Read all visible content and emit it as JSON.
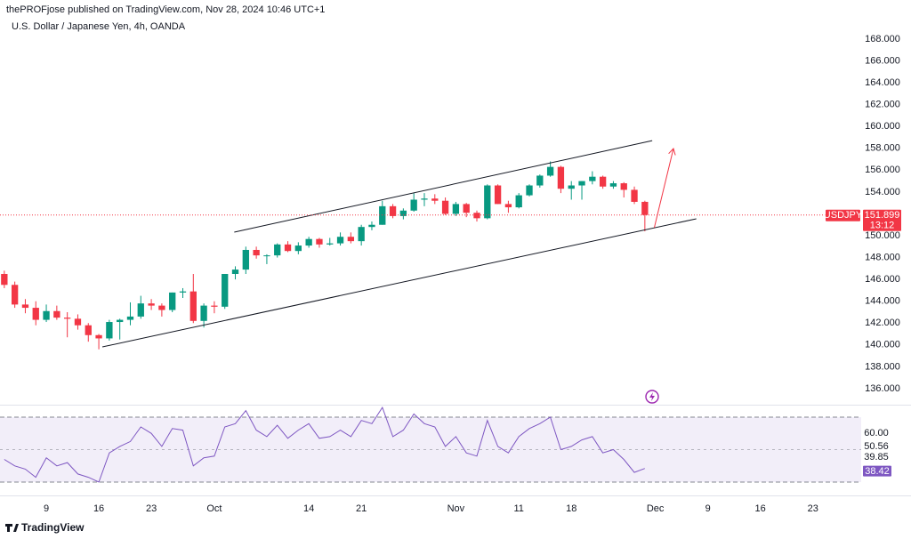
{
  "header": "thePROFjose published on TradingView.com, Nov 28, 2024 10:46 UTC+1",
  "footer": "TradingView",
  "chart_data": [
    {
      "type": "candlestick",
      "title": "U.S. Dollar / Japanese Yen, 4h, OANDA",
      "symbol": "USDJPY",
      "countdown": "13:12",
      "up_color": "#089981",
      "down_color": "#f23645",
      "open": [
        146.5,
        145.5,
        143.7,
        143.4,
        142.3,
        143.1,
        142.5,
        142.4,
        141.8,
        140.9,
        140.6,
        142.1,
        142.3,
        142.6,
        143.8,
        143.6,
        143.2,
        144.8,
        144.9,
        142.2,
        143.6,
        143.5,
        146.5,
        146.9,
        148.7,
        148.2,
        148.2,
        149.2,
        148.6,
        149.1,
        149.7,
        149.2,
        149.3,
        149.9,
        149.5,
        150.8,
        151.0,
        152.7,
        151.8,
        152.3,
        153.3,
        153.4,
        153.2,
        152.0,
        152.9,
        152.1,
        151.6,
        154.6,
        152.9,
        152.6,
        153.7,
        154.6,
        155.5,
        156.3,
        154.3,
        154.6,
        155.0,
        155.4,
        154.5,
        154.8,
        154.2,
        153.1
      ],
      "high": [
        146.8,
        145.8,
        144.2,
        144.0,
        143.7,
        143.6,
        143.0,
        142.8,
        142.0,
        141.0,
        142.3,
        142.4,
        143.9,
        144.5,
        144.2,
        143.8,
        144.8,
        145.2,
        146.5,
        143.8,
        144.0,
        146.5,
        147.2,
        149.0,
        149.0,
        148.3,
        149.3,
        149.5,
        149.4,
        149.9,
        149.8,
        149.8,
        150.3,
        150.3,
        151.0,
        151.3,
        153.2,
        152.9,
        152.5,
        153.9,
        153.9,
        153.8,
        153.5,
        153.1,
        153.0,
        152.3,
        154.7,
        154.7,
        153.2,
        153.9,
        154.7,
        155.6,
        156.8,
        156.4,
        155.0,
        155.0,
        155.9,
        155.5,
        155.0,
        154.9,
        154.5,
        153.2
      ],
      "low": [
        145.2,
        143.4,
        142.9,
        141.8,
        142.1,
        142.3,
        140.7,
        141.4,
        140.3,
        139.6,
        140.4,
        140.5,
        141.8,
        142.4,
        143.2,
        142.6,
        143.0,
        144.3,
        142.0,
        141.6,
        142.9,
        143.3,
        146.0,
        146.5,
        147.9,
        147.4,
        148.0,
        148.5,
        148.3,
        148.9,
        148.9,
        149.1,
        149.1,
        149.3,
        149.1,
        150.5,
        151.0,
        151.6,
        151.5,
        152.2,
        152.7,
        152.9,
        151.9,
        151.8,
        151.7,
        151.3,
        151.5,
        152.9,
        152.1,
        152.5,
        153.6,
        154.4,
        155.4,
        153.9,
        153.3,
        153.3,
        154.7,
        154.3,
        154.3,
        153.5,
        152.9,
        150.4
      ],
      "close": [
        145.5,
        143.7,
        143.4,
        142.3,
        143.1,
        142.5,
        142.4,
        141.8,
        140.9,
        140.6,
        142.1,
        142.3,
        142.6,
        143.8,
        143.6,
        143.2,
        144.8,
        144.9,
        142.2,
        143.6,
        143.5,
        146.5,
        146.9,
        148.7,
        148.2,
        148.2,
        149.2,
        148.6,
        149.1,
        149.7,
        149.2,
        149.3,
        149.9,
        149.5,
        150.8,
        151.0,
        152.7,
        151.8,
        152.3,
        153.3,
        153.4,
        153.2,
        152.0,
        152.9,
        152.1,
        151.6,
        154.6,
        152.9,
        152.6,
        153.7,
        154.6,
        155.5,
        156.3,
        154.3,
        154.6,
        155.0,
        155.4,
        154.5,
        154.8,
        154.2,
        153.1,
        151.899
      ],
      "xlim": [
        -0.41,
        81.6
      ],
      "xticks": [
        {
          "value": 4,
          "label": "9"
        },
        {
          "value": 9,
          "label": "16"
        },
        {
          "value": 14,
          "label": "23"
        },
        {
          "value": 20,
          "label": "Oct"
        },
        {
          "value": 29,
          "label": "14"
        },
        {
          "value": 34,
          "label": "21"
        },
        {
          "value": 43,
          "label": "Nov"
        },
        {
          "value": 49,
          "label": "11"
        },
        {
          "value": 54,
          "label": "18"
        },
        {
          "value": 62,
          "label": "Dec"
        },
        {
          "value": 67,
          "label": "9"
        },
        {
          "value": 72,
          "label": "16"
        },
        {
          "value": 77,
          "label": "23"
        }
      ],
      "ylim": [
        134.53,
        169.95
      ],
      "yticks": [
        {
          "value": 136,
          "label": "136.000"
        },
        {
          "value": 138,
          "label": "138.000"
        },
        {
          "value": 140,
          "label": "140.000"
        },
        {
          "value": 142,
          "label": "142.000"
        },
        {
          "value": 144,
          "label": "144.000"
        },
        {
          "value": 146,
          "label": "146.000"
        },
        {
          "value": 148,
          "label": "148.000"
        },
        {
          "value": 150,
          "label": "150.000"
        },
        {
          "value": 152,
          "label": "152.000"
        },
        {
          "value": 154,
          "label": "154.000"
        },
        {
          "value": 156,
          "label": "156.000"
        },
        {
          "value": 158,
          "label": "158.000"
        },
        {
          "value": 160,
          "label": "160.000"
        },
        {
          "value": 162,
          "label": "162.000"
        },
        {
          "value": 164,
          "label": "164.000"
        },
        {
          "value": 166,
          "label": "166.000"
        },
        {
          "value": 168,
          "label": "168.000"
        }
      ],
      "trendlines": [
        {
          "x": [
            21.9,
            61.7
          ],
          "y": [
            150.33,
            158.7
          ],
          "color": "#131722"
        },
        {
          "x": [
            9.34,
            65.9
          ],
          "y": [
            139.82,
            151.55
          ],
          "color": "#131722"
        },
        {
          "x": [
            61.9,
            63.7
          ],
          "y": [
            150.74,
            157.9
          ],
          "color": "#f23645"
        }
      ]
    },
    {
      "type": "line",
      "name": "RSI",
      "color": "#7e57c2",
      "values": [
        44,
        40,
        38,
        33,
        45,
        40,
        42,
        35,
        33,
        30,
        48,
        52,
        55,
        64,
        60,
        52,
        63,
        62,
        40,
        45,
        46,
        64,
        66,
        74,
        62,
        58,
        65,
        57,
        62,
        66,
        57,
        58,
        62,
        58,
        68,
        66,
        76,
        58,
        62,
        72,
        66,
        64,
        52,
        58,
        48,
        46,
        68,
        52,
        48,
        58,
        63,
        66,
        70,
        50,
        52,
        56,
        58,
        48,
        50,
        44,
        36,
        38.42
      ],
      "levels": [
        70,
        50,
        30
      ],
      "ylim": [
        21.8,
        76.6
      ],
      "yticks": [
        {
          "value": 60,
          "label": "60.00"
        },
        {
          "value": 50.56,
          "label": "50.56"
        },
        {
          "value": 39.85,
          "label": "39.85"
        }
      ]
    }
  ]
}
